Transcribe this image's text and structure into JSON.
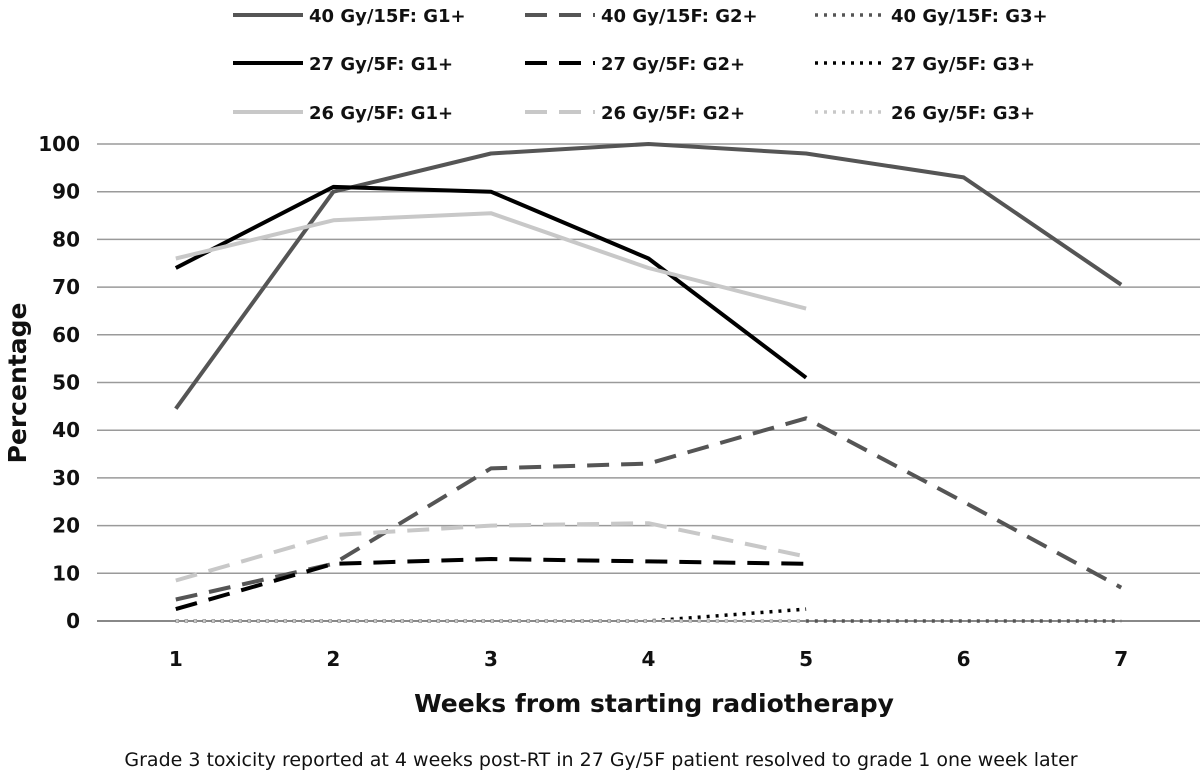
{
  "chart_data": {
    "type": "line",
    "title": "",
    "xlabel": "Weeks from starting radiotherapy",
    "ylabel": "Percentage",
    "footnote": "Grade 3 toxicity reported at 4 weeks post-RT in 27 Gy/5F patient resolved to grade 1 one week later",
    "x": [
      1,
      2,
      3,
      4,
      5,
      6,
      7
    ],
    "xlim": [
      0.5,
      7.5
    ],
    "ylim": [
      0,
      100
    ],
    "yticks": [
      0,
      10,
      20,
      30,
      40,
      50,
      60,
      70,
      80,
      90,
      100
    ],
    "grid": "horizontal",
    "legend_position": "top",
    "series": [
      {
        "name": "40 Gy/15F: G1+",
        "color": "#555555",
        "dash": "solid",
        "x": [
          1,
          2,
          3,
          4,
          5,
          6,
          7
        ],
        "values": [
          44.5,
          90,
          98,
          100,
          98,
          93,
          70.5
        ]
      },
      {
        "name": "40 Gy/15F: G2+",
        "color": "#555555",
        "dash": "dashed",
        "x": [
          1,
          2,
          3,
          4,
          5,
          6,
          7
        ],
        "values": [
          4.5,
          12,
          32,
          33,
          42.5,
          25,
          7
        ]
      },
      {
        "name": "40 Gy/15F: G3+",
        "color": "#555555",
        "dash": "dotted",
        "x": [
          1,
          2,
          3,
          4,
          5,
          6,
          7
        ],
        "values": [
          0,
          0,
          0,
          0,
          0,
          0,
          0
        ]
      },
      {
        "name": "27 Gy/5F: G1+",
        "color": "#000000",
        "dash": "solid",
        "x": [
          1,
          2,
          3,
          4,
          5
        ],
        "values": [
          74,
          91,
          90,
          76,
          51
        ]
      },
      {
        "name": "27 Gy/5F: G2+",
        "color": "#000000",
        "dash": "dashed",
        "x": [
          1,
          2,
          3,
          4,
          5
        ],
        "values": [
          2.5,
          12,
          13,
          12.5,
          12
        ]
      },
      {
        "name": "27 Gy/5F: G3+",
        "color": "#000000",
        "dash": "dotted",
        "x": [
          1,
          2,
          3,
          4,
          5
        ],
        "values": [
          0,
          0,
          0,
          0,
          2.5
        ]
      },
      {
        "name": "26 Gy/5F: G1+",
        "color": "#c8c8c8",
        "dash": "solid",
        "x": [
          1,
          2,
          3,
          4,
          5
        ],
        "values": [
          76,
          84,
          85.5,
          74,
          65.5
        ]
      },
      {
        "name": "26 Gy/5F: G2+",
        "color": "#c8c8c8",
        "dash": "dashed",
        "x": [
          1,
          2,
          3,
          4,
          5
        ],
        "values": [
          8.5,
          18,
          20,
          20.5,
          13.5
        ]
      },
      {
        "name": "26 Gy/5F: G3+",
        "color": "#c8c8c8",
        "dash": "dotted",
        "x": [
          1,
          2,
          3,
          4,
          5
        ],
        "values": [
          0,
          0,
          0,
          0,
          0
        ]
      }
    ]
  }
}
